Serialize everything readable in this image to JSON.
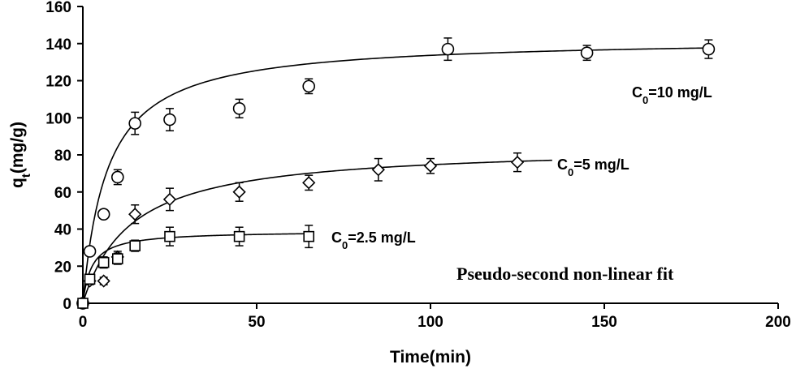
{
  "chart_data": {
    "type": "scatter",
    "xlabel": "Time(min)",
    "ylabel_main": "q",
    "ylabel_sub": "t",
    "ylabel_rest": "(mg/g)",
    "xlim": [
      0,
      200
    ],
    "ylim": [
      0,
      160
    ],
    "x_ticks": [
      0,
      50,
      100,
      150,
      200
    ],
    "y_ticks": [
      0,
      20,
      40,
      60,
      80,
      100,
      120,
      140,
      160
    ],
    "annotation": "Pseudo-second non-linear fit",
    "grid": false,
    "series": [
      {
        "label_main": "C",
        "label_sub": "0",
        "label_rest": "=10 mg/L",
        "marker": "circle",
        "x": [
          0,
          2,
          6,
          10,
          15,
          25,
          45,
          65,
          105,
          145,
          180
        ],
        "y": [
          0,
          28,
          48,
          68,
          97,
          99,
          105,
          117,
          137,
          135,
          137
        ],
        "err": [
          0,
          2,
          2,
          4,
          6,
          6,
          5,
          4,
          6,
          4,
          5
        ],
        "fit": {
          "qe": 143,
          "k2": 0.001,
          "xmax": 180
        }
      },
      {
        "label_main": "C",
        "label_sub": "0",
        "label_rest": "=5 mg/L",
        "marker": "diamond",
        "x": [
          0,
          2,
          6,
          10,
          15,
          25,
          45,
          65,
          85,
          100,
          125
        ],
        "y": [
          0,
          12,
          12,
          25,
          48,
          56,
          60,
          65,
          72,
          74,
          76
        ],
        "err": [
          0,
          2,
          2,
          3,
          5,
          6,
          5,
          4,
          6,
          4,
          5
        ],
        "fit": {
          "qe": 85,
          "k2": 0.00085,
          "xmax": 135
        }
      },
      {
        "label_main": "C",
        "label_sub": "0",
        "label_rest": "=2.5 mg/L",
        "marker": "square",
        "x": [
          0,
          2,
          6,
          10,
          15,
          25,
          45,
          65
        ],
        "y": [
          0,
          13,
          22,
          24,
          31,
          36,
          36,
          36
        ],
        "err": [
          0,
          2,
          3,
          3,
          3,
          5,
          5,
          6
        ],
        "fit": {
          "qe": 39,
          "k2": 0.01,
          "xmax": 65
        }
      }
    ]
  }
}
